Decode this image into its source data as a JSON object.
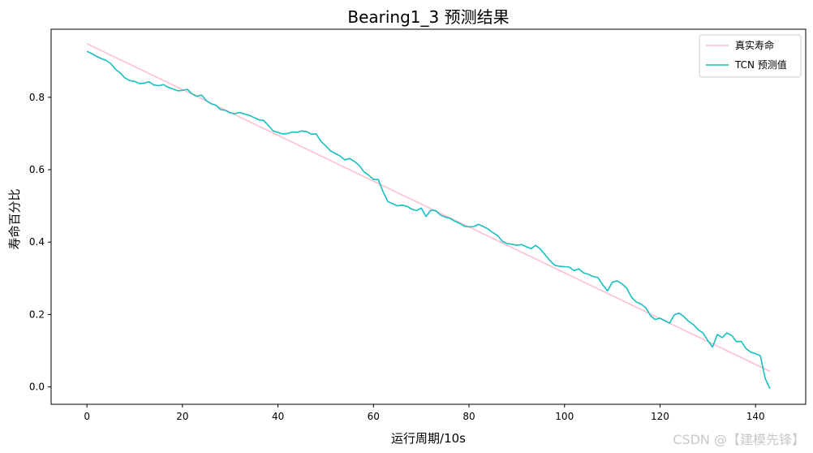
{
  "chart_data": {
    "type": "line",
    "title": "Bearing1_3 预测结果",
    "xlabel": "运行周期/10s",
    "ylabel": "寿命百分比",
    "xlim": [
      -7.5,
      150.5
    ],
    "ylim": [
      -0.048,
      0.988
    ],
    "xticks": [
      0,
      20,
      40,
      60,
      80,
      100,
      120,
      140
    ],
    "yticks": [
      0.0,
      0.2,
      0.4,
      0.6,
      0.8
    ],
    "ytick_labels": [
      "0.0",
      "0.2",
      "0.4",
      "0.6",
      "0.8"
    ],
    "grid": false,
    "legend_position": "top-right",
    "series": [
      {
        "name": "真实寿命",
        "color": "#ffc0cb",
        "points": [
          [
            0,
            0.948
          ],
          [
            143,
            0.043
          ]
        ]
      },
      {
        "name": "TCN 预测值",
        "color": "#17bfc0",
        "points": [
          [
            0,
            0.927
          ],
          [
            1,
            0.921
          ],
          [
            2,
            0.913
          ],
          [
            3,
            0.907
          ],
          [
            4,
            0.902
          ],
          [
            5,
            0.893
          ],
          [
            6,
            0.877
          ],
          [
            7,
            0.867
          ],
          [
            8,
            0.853
          ],
          [
            9,
            0.846
          ],
          [
            10,
            0.844
          ],
          [
            11,
            0.838
          ],
          [
            12,
            0.839
          ],
          [
            13,
            0.843
          ],
          [
            14,
            0.834
          ],
          [
            15,
            0.832
          ],
          [
            16,
            0.835
          ],
          [
            17,
            0.828
          ],
          [
            18,
            0.823
          ],
          [
            19,
            0.818
          ],
          [
            20,
            0.819
          ],
          [
            21,
            0.822
          ],
          [
            22,
            0.81
          ],
          [
            23,
            0.803
          ],
          [
            24,
            0.806
          ],
          [
            25,
            0.791
          ],
          [
            26,
            0.782
          ],
          [
            27,
            0.778
          ],
          [
            28,
            0.766
          ],
          [
            29,
            0.764
          ],
          [
            30,
            0.757
          ],
          [
            31,
            0.755
          ],
          [
            32,
            0.758
          ],
          [
            33,
            0.754
          ],
          [
            34,
            0.75
          ],
          [
            35,
            0.744
          ],
          [
            36,
            0.738
          ],
          [
            37,
            0.736
          ],
          [
            38,
            0.722
          ],
          [
            39,
            0.707
          ],
          [
            40,
            0.703
          ],
          [
            41,
            0.699
          ],
          [
            42,
            0.7
          ],
          [
            43,
            0.704
          ],
          [
            44,
            0.703
          ],
          [
            45,
            0.707
          ],
          [
            46,
            0.705
          ],
          [
            47,
            0.698
          ],
          [
            48,
            0.699
          ],
          [
            49,
            0.678
          ],
          [
            50,
            0.666
          ],
          [
            51,
            0.652
          ],
          [
            52,
            0.645
          ],
          [
            53,
            0.638
          ],
          [
            54,
            0.627
          ],
          [
            55,
            0.631
          ],
          [
            56,
            0.623
          ],
          [
            57,
            0.612
          ],
          [
            58,
            0.594
          ],
          [
            59,
            0.585
          ],
          [
            60,
            0.573
          ],
          [
            61,
            0.573
          ],
          [
            62,
            0.539
          ],
          [
            63,
            0.512
          ],
          [
            64,
            0.506
          ],
          [
            65,
            0.5
          ],
          [
            66,
            0.502
          ],
          [
            67,
            0.499
          ],
          [
            68,
            0.491
          ],
          [
            69,
            0.487
          ],
          [
            70,
            0.494
          ],
          [
            71,
            0.471
          ],
          [
            72,
            0.488
          ],
          [
            73,
            0.487
          ],
          [
            74,
            0.475
          ],
          [
            75,
            0.469
          ],
          [
            76,
            0.466
          ],
          [
            77,
            0.458
          ],
          [
            78,
            0.452
          ],
          [
            79,
            0.444
          ],
          [
            80,
            0.442
          ],
          [
            81,
            0.443
          ],
          [
            82,
            0.449
          ],
          [
            83,
            0.443
          ],
          [
            84,
            0.436
          ],
          [
            85,
            0.426
          ],
          [
            86,
            0.418
          ],
          [
            87,
            0.402
          ],
          [
            88,
            0.396
          ],
          [
            89,
            0.394
          ],
          [
            90,
            0.391
          ],
          [
            91,
            0.393
          ],
          [
            92,
            0.387
          ],
          [
            93,
            0.382
          ],
          [
            94,
            0.391
          ],
          [
            95,
            0.38
          ],
          [
            96,
            0.364
          ],
          [
            97,
            0.348
          ],
          [
            98,
            0.336
          ],
          [
            99,
            0.333
          ],
          [
            100,
            0.332
          ],
          [
            101,
            0.331
          ],
          [
            102,
            0.321
          ],
          [
            103,
            0.326
          ],
          [
            104,
            0.315
          ],
          [
            105,
            0.311
          ],
          [
            106,
            0.305
          ],
          [
            107,
            0.302
          ],
          [
            108,
            0.282
          ],
          [
            109,
            0.265
          ],
          [
            110,
            0.289
          ],
          [
            111,
            0.293
          ],
          [
            112,
            0.285
          ],
          [
            113,
            0.273
          ],
          [
            114,
            0.248
          ],
          [
            115,
            0.235
          ],
          [
            116,
            0.229
          ],
          [
            117,
            0.219
          ],
          [
            118,
            0.197
          ],
          [
            119,
            0.186
          ],
          [
            120,
            0.19
          ],
          [
            121,
            0.183
          ],
          [
            122,
            0.176
          ],
          [
            123,
            0.199
          ],
          [
            124,
            0.204
          ],
          [
            125,
            0.194
          ],
          [
            126,
            0.181
          ],
          [
            127,
            0.172
          ],
          [
            128,
            0.158
          ],
          [
            129,
            0.149
          ],
          [
            130,
            0.128
          ],
          [
            131,
            0.11
          ],
          [
            132,
            0.145
          ],
          [
            133,
            0.136
          ],
          [
            134,
            0.149
          ],
          [
            135,
            0.142
          ],
          [
            136,
            0.125
          ],
          [
            137,
            0.126
          ],
          [
            138,
            0.106
          ],
          [
            139,
            0.096
          ],
          [
            140,
            0.092
          ],
          [
            141,
            0.086
          ],
          [
            142,
            0.024
          ],
          [
            143,
            -0.005
          ]
        ]
      }
    ]
  },
  "watermark": "CSDN @【建模先锋】"
}
